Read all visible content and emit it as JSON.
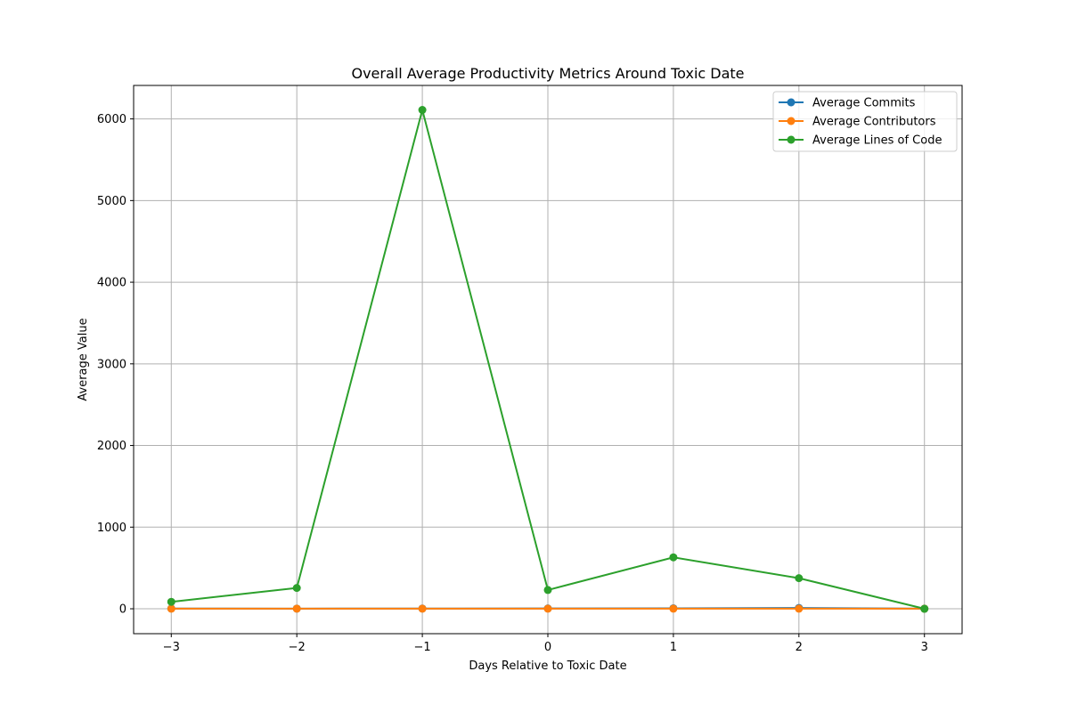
{
  "chart_data": {
    "type": "line",
    "title": "Overall Average Productivity Metrics Around Toxic Date",
    "xlabel": "Days Relative to Toxic Date",
    "ylabel": "Average Value",
    "x": [
      -3,
      -2,
      -1,
      0,
      1,
      2,
      3
    ],
    "x_tick_labels": [
      "−3",
      "−2",
      "−1",
      "0",
      "1",
      "2",
      "3"
    ],
    "y_ticks": [
      0,
      1000,
      2000,
      3000,
      4000,
      5000,
      6000
    ],
    "y_tick_labels": [
      "0",
      "1000",
      "2000",
      "3000",
      "4000",
      "5000",
      "6000"
    ],
    "xlim": [
      -3.3,
      3.3
    ],
    "ylim": [
      -305,
      6410
    ],
    "grid": true,
    "legend_position": "top-right",
    "series": [
      {
        "name": "Average Commits",
        "color": "#1f77b4",
        "values": [
          3,
          2,
          3,
          4,
          6,
          10,
          1
        ]
      },
      {
        "name": "Average Contributors",
        "color": "#ff7f0e",
        "values": [
          1,
          1,
          1,
          1,
          1,
          1,
          1
        ]
      },
      {
        "name": "Average Lines of Code",
        "color": "#2ca02c",
        "values": [
          85,
          255,
          6110,
          230,
          630,
          375,
          0
        ]
      }
    ]
  }
}
